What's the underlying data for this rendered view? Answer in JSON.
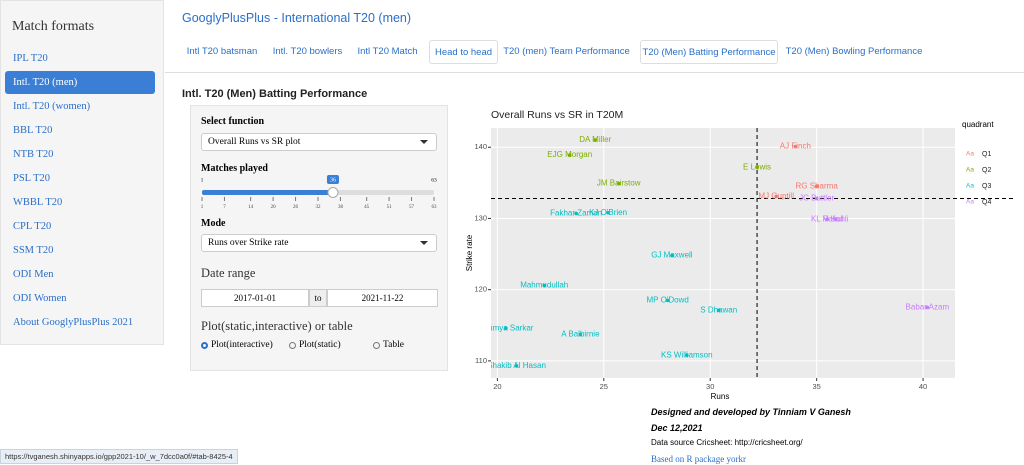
{
  "sidebar": {
    "title": "Match formats",
    "items": [
      "IPL T20",
      "Intl. T20 (men)",
      "Intl. T20 (women)",
      "BBL T20",
      "NTB T20",
      "PSL T20",
      "WBBL T20",
      "CPL T20",
      "SSM T20",
      "ODI Men",
      "ODI Women",
      "About GooglyPlusPlus 2021"
    ],
    "active": 1
  },
  "header": {
    "title": "GooglyPlusPlus - International T20 (men)"
  },
  "tabs": {
    "items": [
      "Intl T20 batsman",
      "Intl. T20 bowlers",
      "Intl T20 Match",
      "Head to head",
      "T20 (men) Team Performance",
      "T20 (Men) Batting Performance",
      "T20 (Men) Bowling Performance"
    ],
    "active": 5
  },
  "section_title": "Intl. T20 (Men) Batting Performance",
  "form": {
    "function_label": "Select function",
    "function_value": "Overall Runs vs SR plot",
    "matches_label": "Matches played",
    "slider": {
      "min": 1,
      "max": 63,
      "value": 36,
      "ticks": [
        1,
        7,
        14,
        20,
        26,
        32,
        38,
        45,
        51,
        57,
        63
      ]
    },
    "mode_label": "Mode",
    "mode_value": "Runs over Strike rate",
    "date_label": "Date range",
    "date_from": "2017-01-01",
    "date_sep": "to",
    "date_to": "2021-11-22",
    "output_label": "Plot(static,interactive) or table",
    "options": [
      "Plot(interactive)",
      "Plot(static)",
      "Table"
    ],
    "selected": 0
  },
  "chart_data": {
    "type": "scatter",
    "title": "Overall Runs vs SR in T20M",
    "x_label": "Runs",
    "y_label": "Strike rate",
    "xlim": [
      19.7,
      41.5
    ],
    "ylim": [
      107.6,
      142.7
    ],
    "xticks": [
      20,
      25,
      30,
      35,
      40
    ],
    "yticks": [
      110,
      120,
      130,
      140
    ],
    "vline": 32.2,
    "hline": 132.8,
    "legend_title": "quadrant",
    "legend_key": "Aa",
    "series": [
      {
        "name": "Q1",
        "color": "#F8766D",
        "labels": [
          "AJ Finch",
          "RG Sharma",
          "MJ Guptill"
        ],
        "x": [
          34.0,
          35.0,
          33.1
        ],
        "values": [
          140.1,
          134.5,
          133.1
        ]
      },
      {
        "name": "Q2",
        "color": "#7CAE00",
        "labels": [
          "DA Miller",
          "EJG Morgan",
          "E Lewis",
          "JM Bairstow"
        ],
        "x": [
          24.6,
          23.4,
          32.2,
          25.7
        ],
        "values": [
          141.0,
          138.9,
          137.2,
          134.9
        ]
      },
      {
        "name": "Q3",
        "color": "#00BFC4",
        "labels": [
          "Fakhar Zaman",
          "KJ O'Brien",
          "GJ Maxwell",
          "Mahmudullah",
          "MP O'Dowd",
          "S Dhawan",
          "Soumya Sarkar",
          "A Balbirnie",
          "KS Williamson",
          "Shakib Al Hasan"
        ],
        "x": [
          23.7,
          25.2,
          28.2,
          22.2,
          28.0,
          30.4,
          20.4,
          23.9,
          28.9,
          20.9
        ],
        "values": [
          130.7,
          130.8,
          124.8,
          120.6,
          118.5,
          117.1,
          114.6,
          113.7,
          110.8,
          109.3
        ]
      },
      {
        "name": "Q4",
        "color": "#C77CFF",
        "labels": [
          "JC Buttler",
          "KL Rahul",
          "V Kohli",
          "Babar Azam"
        ],
        "x": [
          35.0,
          35.5,
          35.9,
          40.2
        ],
        "values": [
          132.8,
          129.9,
          129.9,
          117.5
        ]
      }
    ]
  },
  "footer": {
    "credit": "Designed and developed by Tinniam V Ganesh",
    "date": "Dec 12,2021",
    "source": "Data source Cricsheet: http://cricsheet.org/",
    "link": "Based on R package yorkr"
  },
  "status_bar": "https://tvganesh.shinyapps.io/gpp2021-10/_w_7dcc0a0f/#tab-8425-4"
}
